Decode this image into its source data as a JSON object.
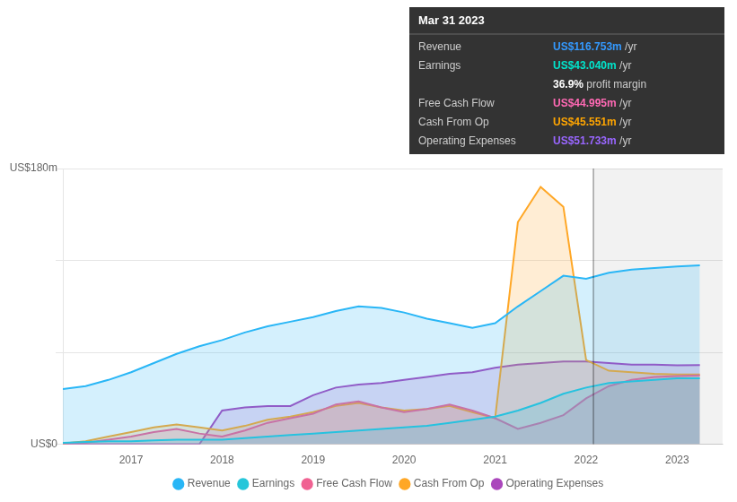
{
  "chart_data": {
    "type": "area",
    "x": [
      2016.25,
      2016.5,
      2016.75,
      2017.0,
      2017.25,
      2017.5,
      2017.75,
      2018.0,
      2018.25,
      2018.5,
      2018.75,
      2019.0,
      2019.25,
      2019.5,
      2019.75,
      2020.0,
      2020.25,
      2020.5,
      2020.75,
      2021.0,
      2021.25,
      2021.5,
      2021.75,
      2022.0,
      2022.25,
      2022.5,
      2022.75,
      2023.0,
      2023.25
    ],
    "series": [
      {
        "name": "Revenue",
        "color": "#29b6f6",
        "values": [
          36,
          38,
          42,
          47,
          53,
          59,
          64,
          68,
          73,
          77,
          80,
          83,
          87,
          90,
          89,
          86,
          82,
          79,
          76,
          79,
          90,
          100,
          110,
          108,
          112,
          114,
          115,
          116,
          116.753
        ]
      },
      {
        "name": "Earnings",
        "color": "#26c6da",
        "values": [
          1,
          1.5,
          2,
          2,
          2.5,
          3,
          3,
          3,
          4,
          5,
          6,
          7,
          8,
          9,
          10,
          11,
          12,
          14,
          16,
          18,
          22,
          27,
          33,
          37,
          40,
          41,
          42,
          43,
          43.04
        ]
      },
      {
        "name": "Free Cash Flow",
        "color": "#f06292",
        "values": [
          0.5,
          1,
          3,
          5,
          8,
          10,
          7,
          5,
          9,
          14,
          17,
          20,
          26,
          28,
          24,
          21,
          23,
          26,
          22,
          17,
          10,
          14,
          19,
          30,
          38,
          42,
          44,
          44.5,
          44.995
        ]
      },
      {
        "name": "Cash From Op",
        "color": "#ffa726",
        "values": [
          0.5,
          2,
          5,
          8,
          11,
          13,
          11,
          9,
          12,
          16,
          18,
          21,
          25,
          27,
          24,
          22,
          23,
          25,
          21,
          17,
          145,
          168,
          155,
          55,
          48,
          47,
          46,
          45.5,
          45.551
        ]
      },
      {
        "name": "Operating Expenses",
        "color": "#ab47bc",
        "values": [
          0,
          0,
          0,
          0,
          0,
          0,
          0,
          22,
          24,
          25,
          25,
          32,
          37,
          39,
          40,
          42,
          44,
          46,
          47,
          50,
          52,
          53,
          54,
          54,
          53,
          52,
          52,
          51.5,
          51.733
        ]
      }
    ],
    "xlim": [
      2016.25,
      2023.5
    ],
    "xticks": [
      2017,
      2018,
      2019,
      2020,
      2021,
      2022,
      2023
    ],
    "ylim": [
      0,
      180
    ],
    "yticks": [
      0,
      60,
      120,
      180
    ],
    "grid": true,
    "tick_labels": "x",
    "legend": "bottom",
    "annotations": [
      {
        "text": "US$180m",
        "y": 180
      },
      {
        "text": "US$0",
        "y": 0
      }
    ],
    "vline_x": 2022.08,
    "tooltip": {
      "title": "Mar 31 2023",
      "rows": [
        {
          "label": "Revenue",
          "value": "US$116.753m",
          "suffix": " /yr",
          "color": "#3399ff"
        },
        {
          "label": "Earnings",
          "value": "US$43.040m",
          "suffix": " /yr",
          "color": "#00e5cc"
        },
        {
          "value": "36.9%",
          "suffix": " profit margin",
          "color": "#ffffff"
        },
        {
          "label": "Free Cash Flow",
          "value": "US$44.995m",
          "suffix": " /yr",
          "color": "#ff69b4"
        },
        {
          "label": "Cash From Op",
          "value": "US$45.551m",
          "suffix": " /yr",
          "color": "#ffa500"
        },
        {
          "label": "Operating Expenses",
          "value": "US$51.733m",
          "suffix": " /yr",
          "color": "#9966ff"
        }
      ]
    }
  }
}
